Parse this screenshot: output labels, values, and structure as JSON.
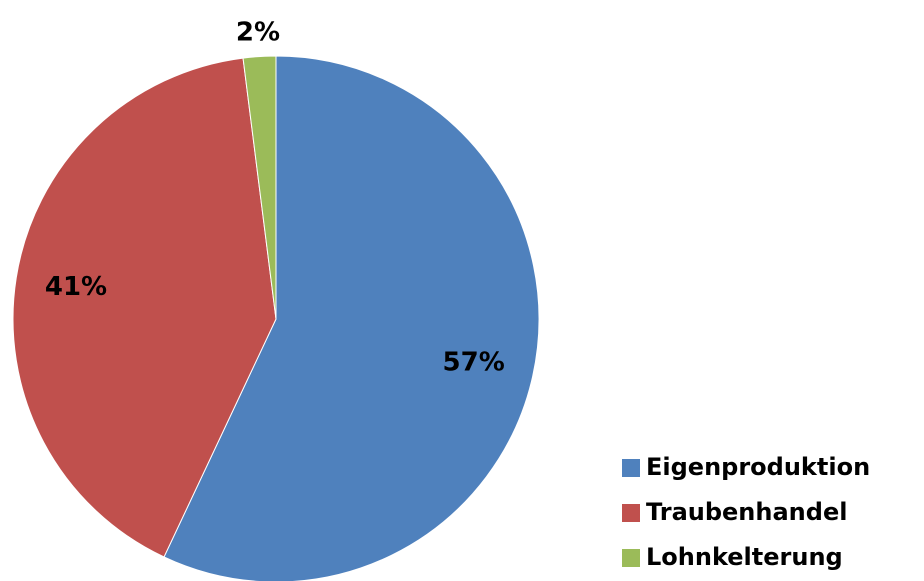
{
  "chart_data": {
    "type": "pie",
    "categories": [
      "Eigenproduktion",
      "Traubenhandel",
      "Lohnkelterung"
    ],
    "values": [
      57,
      41,
      2
    ],
    "value_labels": [
      "57%",
      "41%",
      "2%"
    ],
    "colors": [
      "#4f81bd",
      "#c0504d",
      "#9bbb59"
    ],
    "legend": "bottom-right"
  }
}
